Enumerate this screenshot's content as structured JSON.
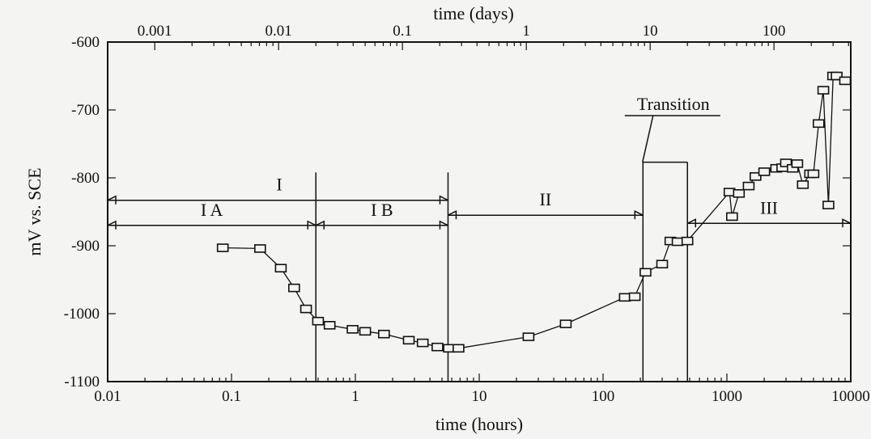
{
  "chart_data": {
    "type": "scatter",
    "x_scale": "log",
    "xlabel": "time (hours)",
    "x_top_label": "time (days)",
    "ylabel": "mV vs. SCE",
    "xlim": [
      0.01,
      10000
    ],
    "ylim": [
      -1100,
      -600
    ],
    "x_ticks": [
      {
        "value": 0.01,
        "label": "0.01"
      },
      {
        "value": 0.1,
        "label": "0.1"
      },
      {
        "value": 1,
        "label": "1"
      },
      {
        "value": 10,
        "label": "10"
      },
      {
        "value": 100,
        "label": "100"
      },
      {
        "value": 1000,
        "label": "1000"
      },
      {
        "value": 10000,
        "label": "10000"
      }
    ],
    "x_top_ticks": [
      {
        "value": 0.024,
        "label": "0.001"
      },
      {
        "value": 0.24,
        "label": "0.01"
      },
      {
        "value": 2.4,
        "label": "0.1"
      },
      {
        "value": 24,
        "label": "1"
      },
      {
        "value": 240,
        "label": "10"
      },
      {
        "value": 2400,
        "label": "100"
      }
    ],
    "y_ticks": [
      {
        "value": -600,
        "label": "-600"
      },
      {
        "value": -700,
        "label": "-700"
      },
      {
        "value": -800,
        "label": "-800"
      },
      {
        "value": -900,
        "label": "-900"
      },
      {
        "value": -1000,
        "label": "-1000"
      },
      {
        "value": -1100,
        "label": "-1100"
      }
    ],
    "series": [
      {
        "x": [
          0.085,
          0.17,
          0.25,
          0.32,
          0.4,
          0.5,
          0.62,
          0.95,
          1.2,
          1.7,
          2.7,
          3.5,
          4.6,
          5.7,
          6.8,
          25,
          50,
          150,
          180,
          220,
          300,
          350,
          400,
          480,
          1050,
          1100,
          1250,
          1500,
          1700,
          2000,
          2500,
          2800,
          3000,
          3400,
          3700,
          4100,
          4700,
          5000,
          5500,
          6000,
          6600,
          7200,
          7700,
          9000
        ],
        "y": [
          -903,
          -904,
          -933,
          -962,
          -993,
          -1011,
          -1017,
          -1023,
          -1026,
          -1030,
          -1039,
          -1043,
          -1049,
          -1051,
          -1051,
          -1034,
          -1015,
          -976,
          -975,
          -939,
          -927,
          -893,
          -894,
          -893,
          -821,
          -857,
          -823,
          -812,
          -798,
          -791,
          -786,
          -785,
          -778,
          -786,
          -779,
          -810,
          -794,
          -794,
          -720,
          -671,
          -840,
          -650,
          -650,
          -657
        ]
      }
    ],
    "vertical_lines_x": [
      0.48,
      5.6,
      210,
      480
    ],
    "regions": [
      {
        "label": "I",
        "x_start": 0.01,
        "x_end": 5.6,
        "y": -833
      },
      {
        "label": "I A",
        "x_start": 0.01,
        "x_end": 0.48,
        "y": -870
      },
      {
        "label": "I B",
        "x_start": 0.48,
        "x_end": 5.6,
        "y": -870
      },
      {
        "label": "II",
        "x_start": 5.6,
        "x_end": 210,
        "y": -855
      },
      {
        "label": "III",
        "x_start": 480,
        "x_end": 10000,
        "y": -867
      },
      {
        "label": "Transition",
        "x_start": 210,
        "x_end": 480,
        "y": -777
      }
    ],
    "grid": false,
    "colors": {
      "ink": "#111111",
      "background": "#f4f4f2"
    }
  }
}
